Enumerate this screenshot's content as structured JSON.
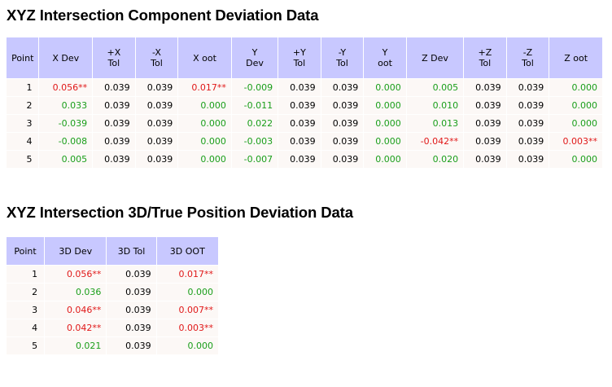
{
  "component_section": {
    "title": "XYZ Intersection Component Deviation Data",
    "headers": [
      "Point",
      "X Dev",
      "+X\nTol",
      "-X\nTol",
      "X oot",
      "Y\nDev",
      "+Y\nTol",
      "-Y\nTol",
      "Y\noot",
      "Z Dev",
      "+Z\nTol",
      "-Z\nTol",
      "Z oot"
    ],
    "rows": [
      [
        "1",
        "0.056**",
        "0.039",
        "0.039",
        "0.017**",
        "-0.009",
        "0.039",
        "0.039",
        "0.000",
        "0.005",
        "0.039",
        "0.039",
        "0.000"
      ],
      [
        "2",
        "0.033",
        "0.039",
        "0.039",
        "0.000",
        "-0.011",
        "0.039",
        "0.039",
        "0.000",
        "0.010",
        "0.039",
        "0.039",
        "0.000"
      ],
      [
        "3",
        "-0.039",
        "0.039",
        "0.039",
        "0.000",
        "0.022",
        "0.039",
        "0.039",
        "0.000",
        "0.013",
        "0.039",
        "0.039",
        "0.000"
      ],
      [
        "4",
        "-0.008",
        "0.039",
        "0.039",
        "0.000",
        "-0.003",
        "0.039",
        "0.039",
        "0.000",
        "-0.042**",
        "0.039",
        "0.039",
        "0.003**"
      ],
      [
        "5",
        "0.005",
        "0.039",
        "0.039",
        "0.000",
        "-0.007",
        "0.039",
        "0.039",
        "0.000",
        "0.020",
        "0.039",
        "0.039",
        "0.000"
      ]
    ]
  },
  "true_position_section": {
    "title": "XYZ Intersection 3D/True Position Deviation Data",
    "headers": [
      "Point",
      "3D Dev",
      "3D Tol",
      "3D OOT"
    ],
    "rows": [
      [
        "1",
        "0.056**",
        "0.039",
        "0.017**"
      ],
      [
        "2",
        "0.036",
        "0.039",
        "0.000"
      ],
      [
        "3",
        "0.046**",
        "0.039",
        "0.007**"
      ],
      [
        "4",
        "0.042**",
        "0.039",
        "0.003**"
      ],
      [
        "5",
        "0.021",
        "0.039",
        "0.000"
      ]
    ]
  },
  "colors": {
    "header_bg": "#c8c8ff",
    "cell_bg": "#fcf8f6",
    "in_tolerance": "#1a9e1a",
    "out_of_tolerance": "#e01818",
    "nominal": "#000000"
  }
}
